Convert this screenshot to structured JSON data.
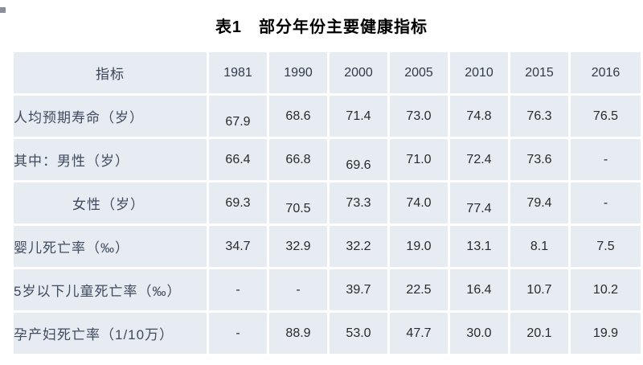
{
  "title": "表1　部分年份主要健康指标",
  "colors": {
    "cell_background": "#e7ebf2",
    "gap_background": "#ffffff",
    "label_text": "#3f4b5e",
    "number_text": "#2b2b2b",
    "title_text": "#000000"
  },
  "table": {
    "header": {
      "indicator": "指标",
      "years": [
        "1981",
        "1990",
        "2000",
        "2005",
        "2010",
        "2015",
        "2016"
      ]
    },
    "rows": [
      {
        "label": "人均预期寿命（岁）",
        "indent": false,
        "values": [
          "67.9",
          "68.6",
          "71.4",
          "73.0",
          "74.8",
          "76.3",
          "76.5"
        ]
      },
      {
        "label": "其中：男性（岁）",
        "indent": false,
        "values": [
          "66.4",
          "66.8",
          "69.6",
          "71.0",
          "72.4",
          "73.6",
          "-"
        ]
      },
      {
        "label": "女性（岁）",
        "indent": true,
        "values": [
          "69.3",
          "70.5",
          "73.3",
          "74.0",
          "77.4",
          "79.4",
          "-"
        ]
      },
      {
        "label": "婴儿死亡率（‰）",
        "indent": false,
        "values": [
          "34.7",
          "32.9",
          "32.2",
          "19.0",
          "13.1",
          "8.1",
          "7.5"
        ]
      },
      {
        "label": "5岁以下儿童死亡率（‰）",
        "indent": false,
        "values": [
          "-",
          "-",
          "39.7",
          "22.5",
          "16.4",
          "10.7",
          "10.2"
        ]
      },
      {
        "label": "孕产妇死亡率（1/10万）",
        "indent": false,
        "values": [
          "-",
          "88.9",
          "53.0",
          "47.7",
          "30.0",
          "20.1",
          "19.9"
        ]
      }
    ]
  }
}
